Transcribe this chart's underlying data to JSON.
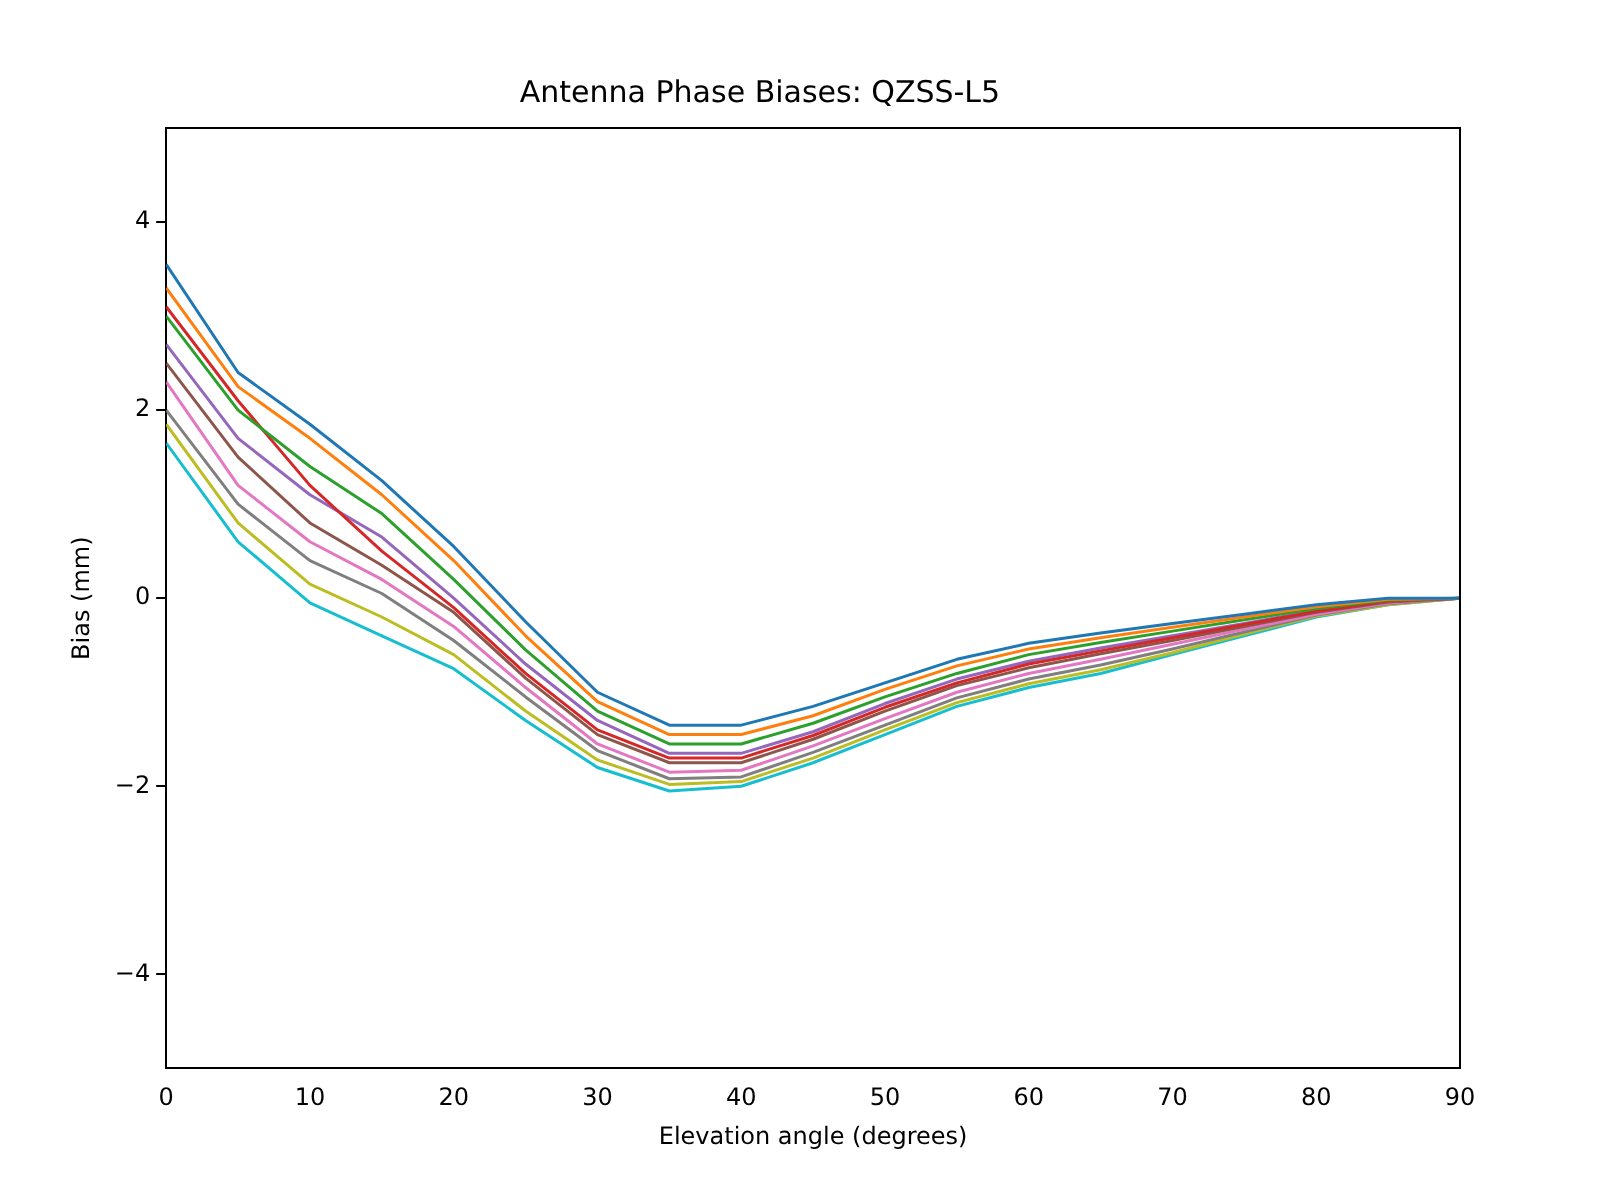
{
  "chart_data": {
    "type": "line",
    "title": "Antenna Phase Biases: QZSS-L5",
    "xlabel": "Elevation angle (degrees)",
    "ylabel": "Bias (mm)",
    "x": [
      0,
      5,
      10,
      15,
      20,
      25,
      30,
      35,
      40,
      45,
      50,
      55,
      60,
      65,
      70,
      75,
      80,
      85,
      90
    ],
    "xlim": [
      0,
      90
    ],
    "xticks": [
      0,
      10,
      20,
      30,
      40,
      50,
      60,
      70,
      80,
      90
    ],
    "ylim": [
      -5,
      5
    ],
    "yticks": [
      {
        "value": -4,
        "label": "−4"
      },
      {
        "value": -2,
        "label": "−2"
      },
      0,
      2,
      4
    ],
    "grid": false,
    "legend": false,
    "marker": "none",
    "line_style": "solid",
    "series": [
      {
        "color": "#1f77b4",
        "values": [
          3.55,
          2.4,
          1.85,
          1.25,
          0.55,
          -0.25,
          -1.0,
          -1.35,
          -1.35,
          -1.15,
          -0.9,
          -0.65,
          -0.48,
          -0.37,
          -0.27,
          -0.17,
          -0.07,
          0,
          0
        ]
      },
      {
        "color": "#ff7f0e",
        "values": [
          3.3,
          2.25,
          1.7,
          1.1,
          0.4,
          -0.4,
          -1.1,
          -1.45,
          -1.45,
          -1.25,
          -0.97,
          -0.72,
          -0.54,
          -0.42,
          -0.31,
          -0.2,
          -0.09,
          -0.01,
          0
        ]
      },
      {
        "color": "#2ca02c",
        "values": [
          3.0,
          2.0,
          1.4,
          0.9,
          0.2,
          -0.55,
          -1.2,
          -1.55,
          -1.55,
          -1.33,
          -1.05,
          -0.8,
          -0.6,
          -0.47,
          -0.35,
          -0.23,
          -0.11,
          -0.02,
          0
        ]
      },
      {
        "color": "#d62728",
        "values": [
          3.1,
          2.1,
          1.2,
          0.5,
          -0.1,
          -0.8,
          -1.4,
          -1.7,
          -1.7,
          -1.46,
          -1.16,
          -0.9,
          -0.7,
          -0.56,
          -0.42,
          -0.28,
          -0.14,
          -0.03,
          0
        ]
      },
      {
        "color": "#9467bd",
        "values": [
          2.7,
          1.7,
          1.1,
          0.65,
          0.0,
          -0.7,
          -1.3,
          -1.65,
          -1.65,
          -1.42,
          -1.12,
          -0.86,
          -0.67,
          -0.53,
          -0.4,
          -0.27,
          -0.13,
          -0.03,
          0
        ]
      },
      {
        "color": "#8c564b",
        "values": [
          2.5,
          1.5,
          0.8,
          0.35,
          -0.15,
          -0.85,
          -1.45,
          -1.75,
          -1.75,
          -1.5,
          -1.2,
          -0.93,
          -0.74,
          -0.59,
          -0.45,
          -0.3,
          -0.15,
          -0.04,
          0
        ]
      },
      {
        "color": "#e377c2",
        "values": [
          2.3,
          1.2,
          0.6,
          0.2,
          -0.3,
          -0.95,
          -1.55,
          -1.85,
          -1.83,
          -1.57,
          -1.28,
          -1.0,
          -0.8,
          -0.65,
          -0.49,
          -0.33,
          -0.17,
          -0.05,
          0
        ]
      },
      {
        "color": "#7f7f7f",
        "values": [
          2.0,
          1.0,
          0.4,
          0.05,
          -0.45,
          -1.05,
          -1.62,
          -1.92,
          -1.9,
          -1.64,
          -1.35,
          -1.06,
          -0.86,
          -0.71,
          -0.54,
          -0.36,
          -0.18,
          -0.06,
          0
        ]
      },
      {
        "color": "#bcbd22",
        "values": [
          1.85,
          0.8,
          0.15,
          -0.2,
          -0.6,
          -1.2,
          -1.72,
          -1.98,
          -1.95,
          -1.7,
          -1.4,
          -1.11,
          -0.91,
          -0.76,
          -0.58,
          -0.38,
          -0.19,
          -0.07,
          0
        ]
      },
      {
        "color": "#17becf",
        "values": [
          1.65,
          0.6,
          -0.05,
          -0.4,
          -0.75,
          -1.3,
          -1.8,
          -2.05,
          -2.0,
          -1.75,
          -1.45,
          -1.15,
          -0.95,
          -0.8,
          -0.6,
          -0.4,
          -0.2,
          -0.07,
          0
        ]
      }
    ]
  }
}
